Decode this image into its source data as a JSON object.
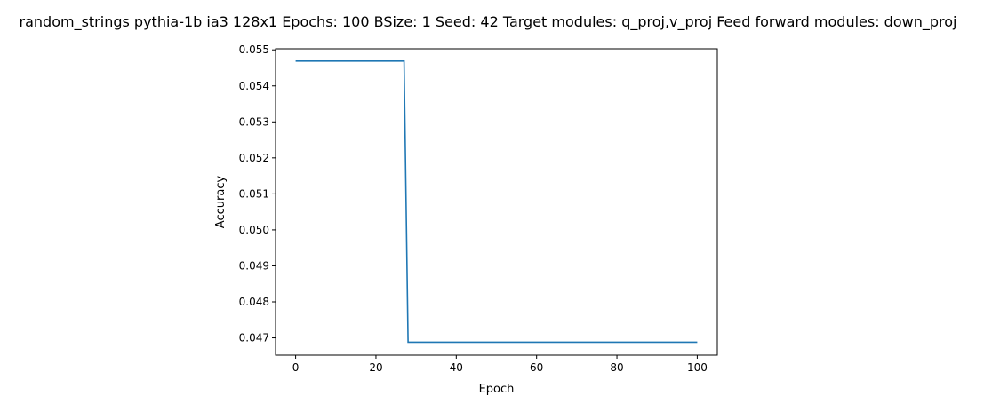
{
  "chart_data": {
    "type": "line",
    "title": "random_strings pythia-1b ia3 128x1 Epochs: 100 BSize: 1 Seed: 42 Target modules: q_proj,v_proj Feed forward modules: down_proj",
    "xlabel": "Epoch",
    "ylabel": "Accuracy",
    "xlim": [
      -5,
      105
    ],
    "ylim": [
      0.04652,
      0.05503
    ],
    "xticks": [
      0,
      20,
      40,
      60,
      80,
      100
    ],
    "xtick_labels": [
      "0",
      "20",
      "40",
      "60",
      "80",
      "100"
    ],
    "yticks": [
      0.047,
      0.048,
      0.049,
      0.05,
      0.051,
      0.052,
      0.053,
      0.054,
      0.055
    ],
    "ytick_labels": [
      "0.047",
      "0.048",
      "0.049",
      "0.050",
      "0.051",
      "0.052",
      "0.053",
      "0.054",
      "0.055"
    ],
    "grid": false,
    "series": [
      {
        "color": "#1f77b4",
        "x": [
          0,
          27,
          28,
          100
        ],
        "y": [
          0.05469,
          0.05469,
          0.04688,
          0.04688
        ]
      }
    ]
  }
}
